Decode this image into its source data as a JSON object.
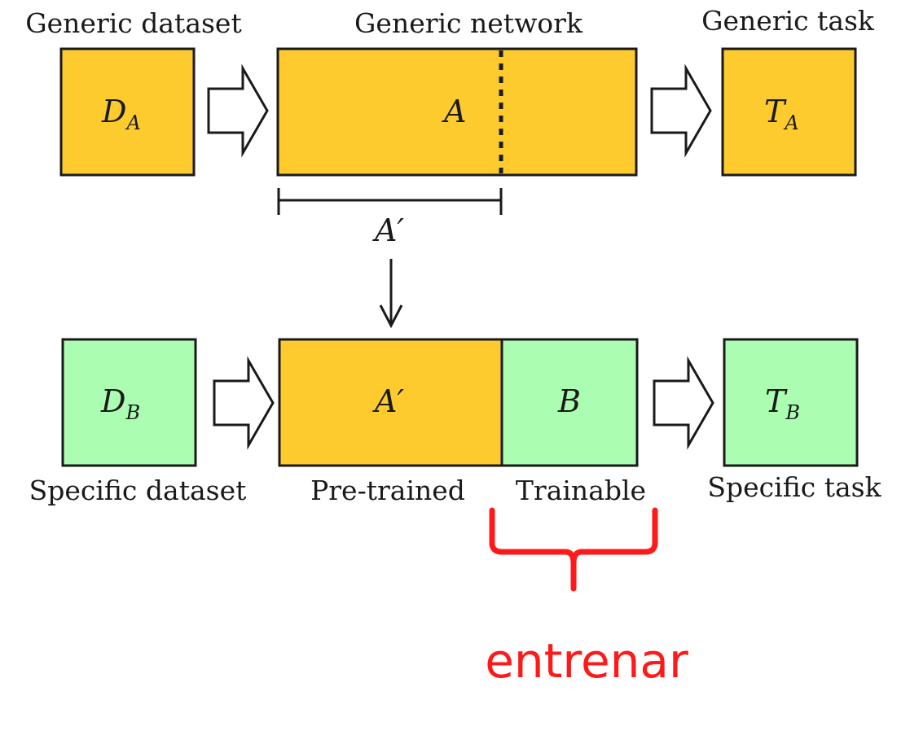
{
  "colors": {
    "generic_fill": "#FDCB2E",
    "specific_fill": "#ABFDB1",
    "annotation": "#FF1A1A"
  },
  "top_row": {
    "dataset_label": "Generic dataset",
    "network_label": "Generic network",
    "task_label": "Generic task",
    "dataset_symbol": "D",
    "dataset_sub": "A",
    "network_symbol": "A",
    "task_symbol": "T",
    "task_sub": "A",
    "split_symbol": "A′"
  },
  "bottom_row": {
    "dataset_label": "Specific dataset",
    "pretrained_label": "Pre-trained",
    "trainable_label": "Trainable",
    "task_label": "Specific task",
    "dataset_symbol": "D",
    "dataset_sub": "B",
    "pretrained_symbol": "A′",
    "trainable_symbol": "B",
    "task_symbol": "T",
    "task_sub": "B"
  },
  "annotation": {
    "text": "entrenar"
  }
}
